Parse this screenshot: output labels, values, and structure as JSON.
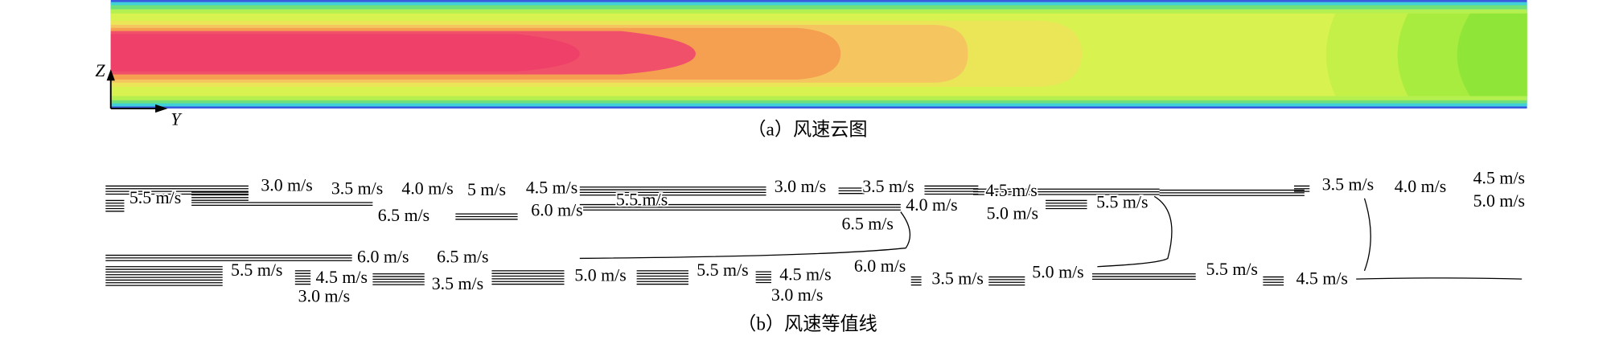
{
  "axis": {
    "z": "Z",
    "y": "Y"
  },
  "caption_a": "（a）风速云图",
  "caption_b": "（b）风速等值线",
  "contour_labels": [
    "3.0 m/s",
    "3.5 m/s",
    "4.0 m/s",
    "5 m/s",
    "4.5 m/s",
    "3.0 m/s",
    "3.5 m/s",
    "4.5 m/s",
    "3.5 m/s",
    "4.0 m/s",
    "4.5 m/s",
    "5.5 m/s",
    "5.5 m/s",
    "4.0 m/s",
    "5.5 m/s",
    "5.0 m/s",
    "6.5 m/s",
    "6.0 m/s",
    "5.0 m/s",
    "6.5 m/s",
    "6.0 m/s",
    "6.5 m/s",
    "5.5 m/s",
    "4.5 m/s",
    "3.0 m/s",
    "3.5 m/s",
    "5.0 m/s",
    "5.5 m/s",
    "4.5 m/s",
    "6.0 m/s",
    "3.0 m/s",
    "3.5 m/s",
    "5.0 m/s",
    "5.5 m/s",
    "4.5 m/s"
  ]
}
